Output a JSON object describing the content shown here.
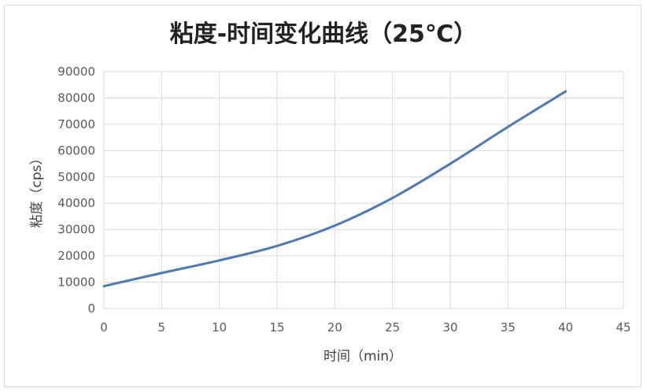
{
  "chart_data": {
    "type": "line",
    "title": "粘度-时间变化曲线（25℃）",
    "xlabel": "时间（min）",
    "ylabel": "粘度（cps）",
    "xlim": [
      0,
      45
    ],
    "ylim": [
      0,
      90000
    ],
    "x_ticks": [
      "0",
      "5",
      "10",
      "15",
      "20",
      "25",
      "30",
      "35",
      "40",
      "45"
    ],
    "y_ticks": [
      "0",
      "10000",
      "20000",
      "30000",
      "40000",
      "50000",
      "60000",
      "70000",
      "80000",
      "90000"
    ],
    "grid": true,
    "legend": "none",
    "series": [
      {
        "color": "#4a7ab5",
        "x": [
          0,
          5,
          10,
          15,
          20,
          25,
          30,
          35,
          40
        ],
        "y": [
          8500,
          13500,
          18300,
          23800,
          31500,
          42000,
          55000,
          69000,
          82500
        ]
      }
    ]
  }
}
